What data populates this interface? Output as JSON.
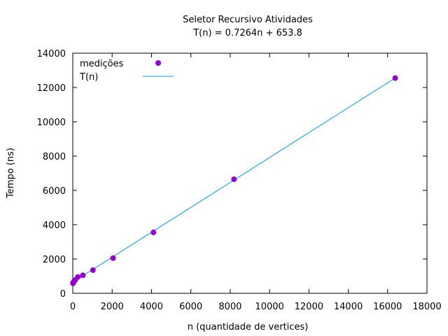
{
  "chart_data": {
    "type": "scatter",
    "title": "Seletor Recursivo Atividades",
    "subtitle": "T(n) = 0.7264n + 653.8",
    "xlabel": "n (quantidade de vertices)",
    "ylabel": "Tempo (ns)",
    "xlim": [
      0,
      18000
    ],
    "ylim": [
      0,
      14000
    ],
    "xticks": [
      0,
      2000,
      4000,
      6000,
      8000,
      10000,
      12000,
      14000,
      16000,
      18000
    ],
    "yticks": [
      0,
      2000,
      4000,
      6000,
      8000,
      10000,
      12000,
      14000
    ],
    "grid": false,
    "legend_position": "top-left",
    "series": [
      {
        "name": "medições",
        "kind": "points",
        "color": "#9400d3",
        "x": [
          8,
          16,
          32,
          64,
          128,
          256,
          512,
          1024,
          2048,
          4096,
          8192,
          16384
        ],
        "y": [
          580,
          620,
          650,
          700,
          780,
          950,
          1050,
          1350,
          2050,
          3550,
          6650,
          12550
        ]
      },
      {
        "name": "T(n)",
        "kind": "line",
        "color": "#009ee0",
        "slope": 0.7264,
        "intercept": 653.8,
        "x_range": [
          0,
          16384
        ]
      }
    ]
  }
}
